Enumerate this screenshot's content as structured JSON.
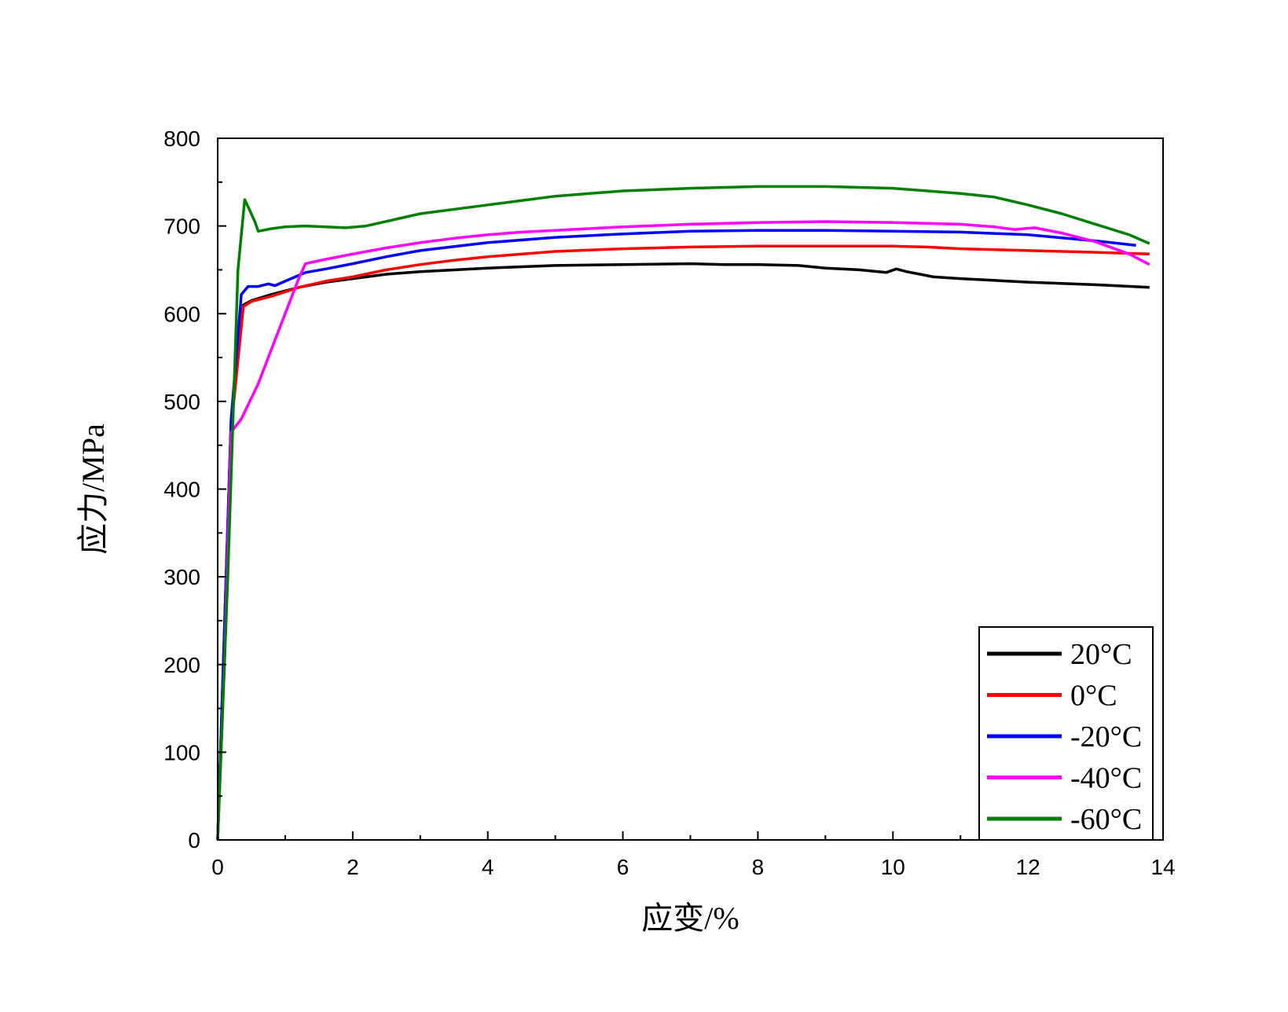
{
  "chart_data": {
    "type": "line",
    "title": "",
    "xlabel": "应变/%",
    "ylabel": "应力/MPa",
    "xlim": [
      0,
      14
    ],
    "ylim": [
      0,
      800
    ],
    "x_ticks": [
      "0",
      "2",
      "4",
      "6",
      "8",
      "10",
      "12",
      "14"
    ],
    "y_ticks": [
      "0",
      "100",
      "200",
      "300",
      "400",
      "500",
      "600",
      "700",
      "800"
    ],
    "grid": false,
    "legend_position": "bottom-right",
    "series": [
      {
        "name": "20°C",
        "color": "#000000",
        "x": [
          0,
          0.2,
          0.38,
          0.5,
          0.8,
          1.2,
          1.6,
          2.0,
          2.5,
          3.0,
          4.0,
          5.0,
          6.0,
          7.0,
          7.5,
          8.0,
          8.6,
          9.0,
          9.5,
          9.9,
          10.05,
          10.2,
          10.6,
          11.0,
          12.0,
          13.0,
          13.8
        ],
        "y": [
          0,
          480,
          610,
          615,
          622,
          630,
          636,
          640,
          645,
          648,
          652,
          655,
          656,
          657,
          656,
          656,
          655,
          652,
          650,
          647,
          651,
          648,
          642,
          640,
          636,
          633,
          630
        ]
      },
      {
        "name": "0°C",
        "color": "#ff0000",
        "x": [
          0,
          0.2,
          0.38,
          0.5,
          0.8,
          1.2,
          1.6,
          2.0,
          2.5,
          3.0,
          3.5,
          4.0,
          5.0,
          6.0,
          7.0,
          8.0,
          9.0,
          10.0,
          10.5,
          11.0,
          12.0,
          13.0,
          13.8
        ],
        "y": [
          0,
          470,
          608,
          614,
          620,
          630,
          637,
          642,
          650,
          656,
          661,
          665,
          671,
          674,
          676,
          677,
          677,
          677,
          676,
          674,
          672,
          670,
          668
        ]
      },
      {
        "name": "-20°C",
        "color": "#0000ff",
        "x": [
          0,
          0.2,
          0.35,
          0.45,
          0.6,
          0.75,
          0.85,
          1.0,
          1.3,
          1.6,
          2.0,
          2.5,
          3.0,
          4.0,
          5.0,
          6.0,
          7.0,
          8.0,
          9.0,
          10.0,
          11.0,
          12.0,
          13.0,
          13.6
        ],
        "y": [
          0,
          480,
          622,
          631,
          631,
          634,
          632,
          637,
          647,
          651,
          657,
          665,
          672,
          681,
          687,
          691,
          694,
          695,
          695,
          694,
          693,
          690,
          683,
          678
        ]
      },
      {
        "name": "-40°C",
        "color": "#ff00ff",
        "x": [
          0,
          0.1,
          0.2,
          0.35,
          0.6,
          0.8,
          1.0,
          1.2,
          1.3,
          1.6,
          2.0,
          2.5,
          3.0,
          3.5,
          4.0,
          4.5,
          5.0,
          6.0,
          7.0,
          8.0,
          9.0,
          10.0,
          11.0,
          11.5,
          11.8,
          12.1,
          12.5,
          13.0,
          13.5,
          13.8
        ],
        "y": [
          0,
          200,
          465,
          480,
          520,
          560,
          600,
          640,
          657,
          662,
          668,
          675,
          681,
          686,
          690,
          693,
          695,
          699,
          702,
          704,
          705,
          704,
          702,
          699,
          696,
          698,
          692,
          682,
          668,
          656
        ]
      },
      {
        "name": "-60°C",
        "color": "#008000",
        "x": [
          0,
          0.15,
          0.3,
          0.4,
          0.45,
          0.55,
          0.6,
          0.8,
          1.0,
          1.3,
          1.6,
          1.9,
          2.2,
          2.6,
          3.0,
          4.0,
          5.0,
          6.0,
          7.0,
          8.0,
          9.0,
          10.0,
          11.0,
          11.5,
          12.0,
          12.5,
          13.0,
          13.5,
          13.8
        ],
        "y": [
          0,
          300,
          650,
          730,
          722,
          705,
          694,
          697,
          699,
          700,
          699,
          698,
          700,
          707,
          714,
          724,
          734,
          740,
          743,
          745,
          745,
          743,
          737,
          733,
          724,
          714,
          702,
          690,
          680
        ]
      }
    ]
  }
}
